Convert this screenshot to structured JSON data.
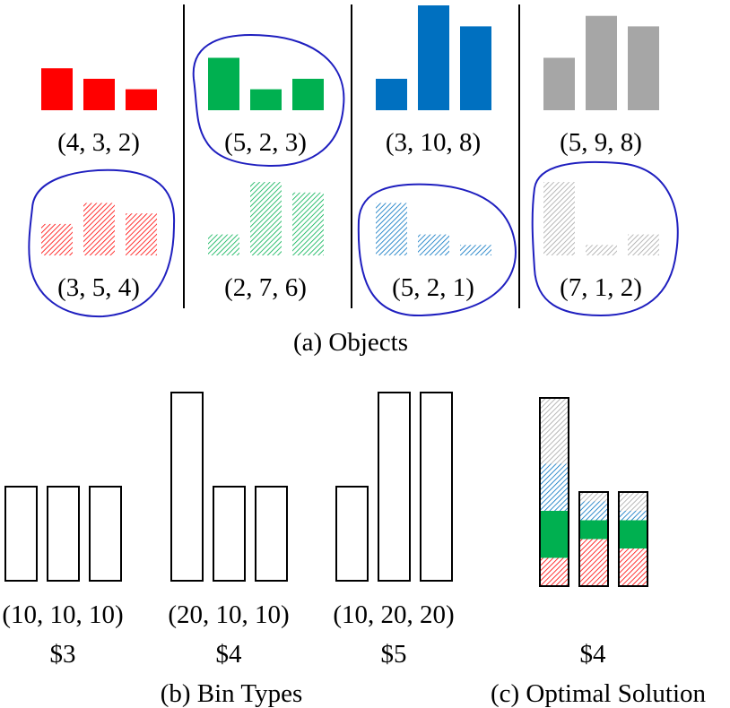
{
  "colors": {
    "red": "#ff0000",
    "green": "#00b050",
    "blue": "#0070c0",
    "gray": "#a6a6a6",
    "circle": "#1f1fbf",
    "outline": "#000000"
  },
  "objects": {
    "caption": "(a) Objects",
    "items": [
      {
        "label": "(4, 3, 2)",
        "values": [
          4,
          3,
          2
        ],
        "color": "red",
        "style": "solid",
        "selected": false
      },
      {
        "label": "(5, 2, 3)",
        "values": [
          5,
          2,
          3
        ],
        "color": "green",
        "style": "solid",
        "selected": true
      },
      {
        "label": "(3, 10, 8)",
        "values": [
          3,
          10,
          8
        ],
        "color": "blue",
        "style": "solid",
        "selected": false
      },
      {
        "label": "(5, 9, 8)",
        "values": [
          5,
          9,
          8
        ],
        "color": "gray",
        "style": "solid",
        "selected": false
      },
      {
        "label": "(3, 5, 4)",
        "values": [
          3,
          5,
          4
        ],
        "color": "red",
        "style": "hatched",
        "selected": true
      },
      {
        "label": "(2, 7, 6)",
        "values": [
          2,
          7,
          6
        ],
        "color": "green",
        "style": "hatched",
        "selected": false
      },
      {
        "label": "(5, 2, 1)",
        "values": [
          5,
          2,
          1
        ],
        "color": "blue",
        "style": "hatched",
        "selected": true
      },
      {
        "label": "(7, 1, 2)",
        "values": [
          7,
          1,
          2
        ],
        "color": "gray",
        "style": "hatched",
        "selected": true
      }
    ]
  },
  "bin_types": {
    "caption": "(b) Bin Types",
    "items": [
      {
        "label": "(10, 10, 10)",
        "capacities": [
          10,
          10,
          10
        ],
        "price": "$3"
      },
      {
        "label": "(20, 10, 10)",
        "capacities": [
          20,
          10,
          10
        ],
        "price": "$4"
      },
      {
        "label": "(10, 20, 20)",
        "capacities": [
          10,
          20,
          20
        ],
        "price": "$5"
      }
    ]
  },
  "solution": {
    "caption": "(c) Optimal Solution",
    "price": "$4",
    "bin_type": "(20, 10, 10)",
    "packing_order": [
      "(3, 5, 4)",
      "(5, 2, 3)",
      "(5, 2, 1)",
      "(7, 1, 2)"
    ]
  }
}
